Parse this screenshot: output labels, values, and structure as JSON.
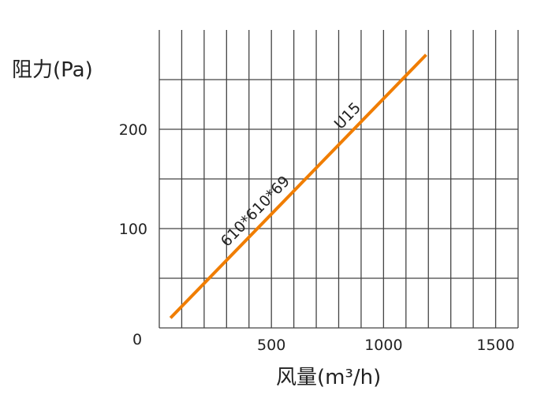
{
  "chart_data": {
    "type": "line",
    "title": "",
    "xlabel": "风量(m³/h)",
    "ylabel": "阻力(Pa)",
    "xlim": [
      0,
      1600
    ],
    "ylim": [
      0,
      300
    ],
    "x_ticks": [
      500,
      1000,
      1500
    ],
    "y_ticks": [
      100,
      200
    ],
    "origin_label": "0",
    "grid": true,
    "x_grid_step": 100,
    "y_grid_step": 50,
    "series": [
      {
        "color": "#f07d00",
        "x": [
          50,
          1190
        ],
        "y": [
          10,
          275
        ]
      }
    ],
    "annotations": [
      "610*610*69",
      "U15"
    ]
  }
}
